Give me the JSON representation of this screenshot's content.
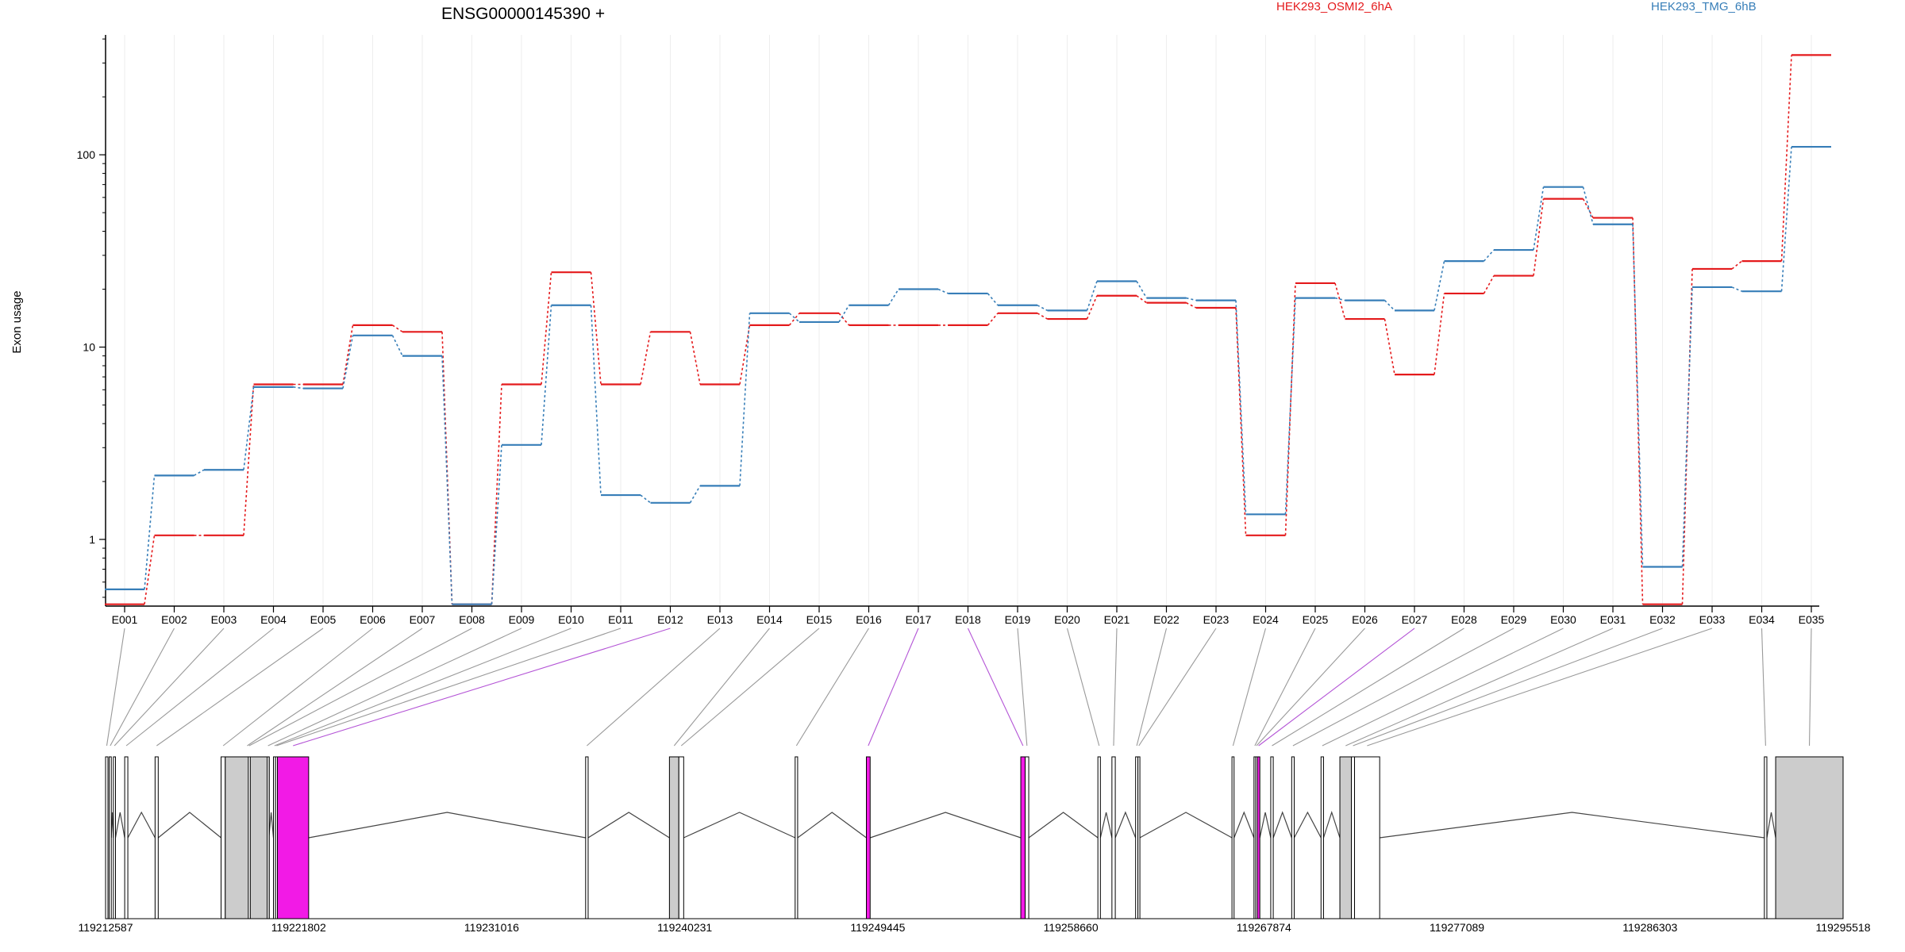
{
  "title": "ENSG00000145390 +",
  "legend": [
    {
      "name": "HEK293_OSMI2_6hA",
      "color": "#e41a1c"
    },
    {
      "name": "HEK293_TMG_6hB",
      "color": "#377eb8"
    }
  ],
  "ylabel": "Exon usage",
  "colors": {
    "highlight": "#f21ae6",
    "exon_grey": "#cccccc",
    "connector": "#999999",
    "connector_highlight": "#b455d6"
  },
  "chart_data": {
    "type": "line",
    "scale": "log",
    "ylim": [
      0.45,
      420
    ],
    "yticks": [
      1,
      10,
      100
    ],
    "ytick_labels": [
      "1",
      "10",
      "100"
    ],
    "categories": [
      "E001",
      "E002",
      "E003",
      "E004",
      "E005",
      "E006",
      "E007",
      "E008",
      "E009",
      "E010",
      "E011",
      "E012",
      "E013",
      "E014",
      "E015",
      "E016",
      "E017",
      "E018",
      "E019",
      "E020",
      "E021",
      "E022",
      "E023",
      "E024",
      "E025",
      "E026",
      "E027",
      "E028",
      "E029",
      "E030",
      "E031",
      "E032",
      "E033",
      "E034",
      "E035"
    ],
    "series": [
      {
        "name": "HEK293_OSMI2_6hA",
        "color": "#e41a1c",
        "values": [
          0.46,
          1.05,
          1.05,
          6.4,
          6.4,
          13.0,
          12.0,
          0.46,
          6.4,
          24.5,
          6.4,
          12.0,
          6.4,
          13.0,
          15.0,
          13.0,
          13.0,
          13.0,
          15.0,
          14.0,
          18.5,
          17.0,
          16.0,
          1.05,
          21.5,
          14.0,
          7.2,
          19.0,
          23.5,
          59.0,
          47.0,
          0.46,
          25.5,
          28.0,
          330.0
        ]
      },
      {
        "name": "HEK293_TMG_6hB",
        "color": "#377eb8",
        "values": [
          0.55,
          2.15,
          2.3,
          6.2,
          6.1,
          11.5,
          9.0,
          0.46,
          3.1,
          16.5,
          1.7,
          1.55,
          1.9,
          15.0,
          13.5,
          16.5,
          20.0,
          19.0,
          16.5,
          15.5,
          22.0,
          18.0,
          17.5,
          1.35,
          18.0,
          17.5,
          15.5,
          28.0,
          32.0,
          68.0,
          43.5,
          0.72,
          20.5,
          19.5,
          110.0
        ]
      }
    ],
    "highlighted_exons": [
      "E012",
      "E017",
      "E018",
      "E027"
    ]
  },
  "gene_model": {
    "start": 119212587,
    "end": 119295518,
    "tick_labels": [
      "119212587",
      "119221802",
      "119231016",
      "119240231",
      "119249445",
      "119258660",
      "119267874",
      "119277089",
      "119286303",
      "119295518"
    ],
    "exons": [
      {
        "id": "E001",
        "start": 119212587,
        "end": 119212700,
        "fill": "none"
      },
      {
        "id": "E002",
        "start": 119212760,
        "end": 119212860,
        "fill": "none"
      },
      {
        "id": "E003",
        "start": 119212960,
        "end": 119213060,
        "fill": "none"
      },
      {
        "id": "E004",
        "start": 119213500,
        "end": 119213650,
        "fill": "none"
      },
      {
        "id": "E005",
        "start": 119214950,
        "end": 119215100,
        "fill": "none"
      },
      {
        "id": "E006",
        "start": 119218100,
        "end": 119218300,
        "fill": "none"
      },
      {
        "id": "E007",
        "start": 119218300,
        "end": 119220400,
        "fill": "grey"
      },
      {
        "id": "E008",
        "start": 119219400,
        "end": 119219480,
        "fill": "none"
      },
      {
        "id": "E009",
        "start": 119220300,
        "end": 119220380,
        "fill": "none"
      },
      {
        "id": "E010",
        "start": 119220600,
        "end": 119220700,
        "fill": "none"
      },
      {
        "id": "E011",
        "start": 119220700,
        "end": 119220790,
        "fill": "none"
      },
      {
        "id": "E012",
        "start": 119220790,
        "end": 119222280,
        "fill": "highlight"
      },
      {
        "id": "E013",
        "start": 119235500,
        "end": 119235620,
        "fill": "none"
      },
      {
        "id": "E014",
        "start": 119239500,
        "end": 119239950,
        "fill": "grey"
      },
      {
        "id": "E015",
        "start": 119239950,
        "end": 119240180,
        "fill": "none"
      },
      {
        "id": "E016",
        "start": 119245500,
        "end": 119245620,
        "fill": "none"
      },
      {
        "id": "E017",
        "start": 119248900,
        "end": 119249080,
        "fill": "highlight"
      },
      {
        "id": "E018",
        "start": 119256270,
        "end": 119256480,
        "fill": "highlight"
      },
      {
        "id": "E019",
        "start": 119256480,
        "end": 119256650,
        "fill": "none"
      },
      {
        "id": "E020",
        "start": 119259950,
        "end": 119260070,
        "fill": "none"
      },
      {
        "id": "E021",
        "start": 119260620,
        "end": 119260780,
        "fill": "none"
      },
      {
        "id": "E022",
        "start": 119261750,
        "end": 119261860,
        "fill": "none"
      },
      {
        "id": "E023",
        "start": 119261860,
        "end": 119261950,
        "fill": "none"
      },
      {
        "id": "E024",
        "start": 119266350,
        "end": 119266450,
        "fill": "none"
      },
      {
        "id": "E025",
        "start": 119267400,
        "end": 119267480,
        "fill": "none"
      },
      {
        "id": "E026",
        "start": 119267480,
        "end": 119267560,
        "fill": "none"
      },
      {
        "id": "E027",
        "start": 119267560,
        "end": 119267680,
        "fill": "highlight"
      },
      {
        "id": "E028",
        "start": 119268200,
        "end": 119268320,
        "fill": "none"
      },
      {
        "id": "E029",
        "start": 119269200,
        "end": 119269320,
        "fill": "none"
      },
      {
        "id": "E030",
        "start": 119270600,
        "end": 119270720,
        "fill": "none"
      },
      {
        "id": "E031",
        "start": 119271500,
        "end": 119272050,
        "fill": "grey"
      },
      {
        "id": "E032",
        "start": 119272050,
        "end": 119272200,
        "fill": "none"
      },
      {
        "id": "E033",
        "start": 119272200,
        "end": 119273400,
        "fill": "none"
      },
      {
        "id": "E034",
        "start": 119291760,
        "end": 119291880,
        "fill": "none"
      },
      {
        "id": "E035",
        "start": 119292300,
        "end": 119295518,
        "fill": "grey"
      }
    ]
  }
}
